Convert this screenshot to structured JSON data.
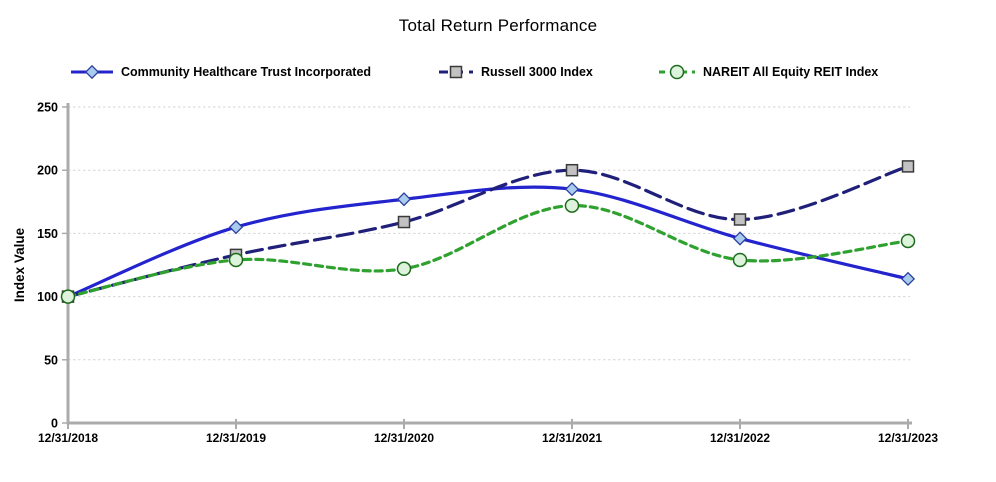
{
  "title": "Total Return Performance",
  "chart_data": {
    "type": "line",
    "title": "Total Return Performance",
    "xlabel": "",
    "ylabel": "Index Value",
    "categories": [
      "12/31/2018",
      "12/31/2019",
      "12/31/2020",
      "12/31/2021",
      "12/31/2022",
      "12/31/2023"
    ],
    "series": [
      {
        "name": "Community Healthcare Trust Incorporated",
        "values": [
          100,
          155,
          177,
          185,
          146,
          114
        ],
        "color": "#2424CE",
        "line_style": "solid",
        "marker": "diamond",
        "marker_fill": "#A9CBEE",
        "marker_stroke": "#2B3F9E"
      },
      {
        "name": "Russell 3000 Index",
        "values": [
          100,
          133,
          159,
          200,
          161,
          203
        ],
        "color": "#20207A",
        "line_style": "long-dash",
        "marker": "square",
        "marker_fill": "#C2C2C2",
        "marker_stroke": "#3A3A3A"
      },
      {
        "name": "NAREIT All Equity REIT Index",
        "values": [
          100,
          129,
          122,
          172,
          129,
          144
        ],
        "color": "#2FA12F",
        "line_style": "dash",
        "marker": "circle",
        "marker_fill": "#DDF3DB",
        "marker_stroke": "#1C6B1C"
      }
    ],
    "ylim": [
      0,
      250
    ],
    "yticks": [
      0,
      50,
      100,
      150,
      200,
      250
    ],
    "grid": true,
    "legend_position": "top",
    "axis_color": "#ABABAB",
    "grid_color": "#D6D6D6",
    "smoothed": true
  }
}
